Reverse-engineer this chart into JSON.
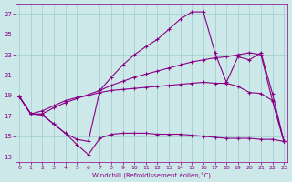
{
  "xlabel": "Windchill (Refroidissement éolien,°C)",
  "background_color": "#cce8e8",
  "grid_color": "#9ecece",
  "line_color": "#880088",
  "xlim": [
    -0.3,
    23.3
  ],
  "ylim": [
    12.5,
    28.0
  ],
  "x_ticks": [
    0,
    1,
    2,
    3,
    4,
    5,
    6,
    7,
    8,
    9,
    10,
    11,
    12,
    13,
    14,
    15,
    16,
    17,
    18,
    19,
    20,
    21,
    22,
    23
  ],
  "y_ticks": [
    13,
    15,
    17,
    19,
    21,
    23,
    25,
    27
  ],
  "series": [
    [
      18.9,
      17.2,
      17.1,
      16.2,
      15.3,
      14.2,
      13.2,
      14.8,
      15.2,
      15.3,
      15.3,
      15.3,
      15.2,
      15.2,
      15.2,
      15.1,
      15.0,
      14.9,
      14.8,
      14.8,
      14.8,
      14.7,
      14.7,
      14.5
    ],
    [
      18.9,
      17.2,
      17.2,
      17.8,
      18.3,
      18.7,
      19.1,
      19.5,
      20.0,
      20.4,
      20.8,
      21.1,
      21.4,
      21.7,
      22.0,
      22.3,
      22.5,
      22.7,
      22.8,
      23.0,
      23.2,
      23.0,
      18.5,
      14.5
    ],
    [
      18.9,
      17.2,
      17.5,
      18.0,
      18.5,
      18.8,
      19.0,
      19.3,
      19.5,
      19.6,
      19.7,
      19.8,
      19.9,
      20.0,
      20.1,
      20.2,
      20.3,
      20.2,
      20.2,
      19.9,
      19.3,
      19.2,
      18.5,
      14.5
    ],
    [
      18.9,
      17.2,
      17.1,
      16.2,
      15.3,
      14.7,
      14.5,
      19.5,
      20.8,
      22.0,
      23.0,
      23.8,
      24.5,
      25.5,
      26.5,
      27.2,
      27.2,
      23.2,
      20.3,
      22.8,
      22.5,
      23.2,
      19.2,
      14.5
    ]
  ]
}
